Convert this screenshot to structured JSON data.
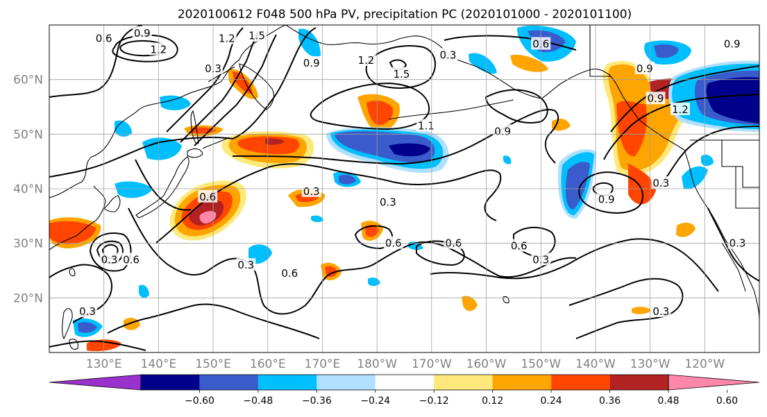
{
  "title": "2020100612 F048 500 hPa PV, precipitation PC (2020101000 - 2020101100)",
  "map": {
    "lon_range": [
      120,
      250
    ],
    "lat_range": [
      10,
      70
    ],
    "lat_ticks": [
      {
        "value": 20,
        "label": "20°N"
      },
      {
        "value": 30,
        "label": "30°N"
      },
      {
        "value": 40,
        "label": "40°N"
      },
      {
        "value": 50,
        "label": "50°N"
      },
      {
        "value": 60,
        "label": "60°N"
      }
    ],
    "lon_ticks": [
      {
        "value": 130,
        "label": "130°E"
      },
      {
        "value": 140,
        "label": "140°E"
      },
      {
        "value": 150,
        "label": "150°E"
      },
      {
        "value": 160,
        "label": "160°E"
      },
      {
        "value": 170,
        "label": "170°E"
      },
      {
        "value": 180,
        "label": "180°W"
      },
      {
        "value": 190,
        "label": "170°W"
      },
      {
        "value": 200,
        "label": "160°W"
      },
      {
        "value": 210,
        "label": "150°W"
      },
      {
        "value": 220,
        "label": "140°W"
      },
      {
        "value": 230,
        "label": "130°W"
      },
      {
        "value": 240,
        "label": "120°W"
      }
    ],
    "contour_labels": [
      {
        "text": "0.6",
        "lon": 130,
        "lat": 67.5
      },
      {
        "text": "0.9",
        "lon": 137,
        "lat": 68.5
      },
      {
        "text": "1.2",
        "lon": 140,
        "lat": 65.5
      },
      {
        "text": "1.2",
        "lon": 152.5,
        "lat": 67.5
      },
      {
        "text": "1.5",
        "lon": 158,
        "lat": 68
      },
      {
        "text": "0.3",
        "lon": 150,
        "lat": 62
      },
      {
        "text": "0.9",
        "lon": 168,
        "lat": 63
      },
      {
        "text": "1.2",
        "lon": 178,
        "lat": 63.5
      },
      {
        "text": "1.5",
        "lon": 184.5,
        "lat": 61
      },
      {
        "text": "0.3",
        "lon": 193,
        "lat": 64.5
      },
      {
        "text": "0.6",
        "lon": 210,
        "lat": 66.5
      },
      {
        "text": "0.9",
        "lon": 229,
        "lat": 62
      },
      {
        "text": "0.9",
        "lon": 245,
        "lat": 66.5
      },
      {
        "text": "0.9",
        "lon": 231,
        "lat": 56.5
      },
      {
        "text": "1.2",
        "lon": 235.5,
        "lat": 54.5
      },
      {
        "text": "1.1",
        "lon": 189,
        "lat": 51.5
      },
      {
        "text": "0.9",
        "lon": 203,
        "lat": 50.5
      },
      {
        "text": "0.6",
        "lon": 149,
        "lat": 38.5
      },
      {
        "text": "0.3",
        "lon": 168,
        "lat": 39.5
      },
      {
        "text": "0.3",
        "lon": 182,
        "lat": 37.5
      },
      {
        "text": "0.6",
        "lon": 183,
        "lat": 30
      },
      {
        "text": "0.6",
        "lon": 194,
        "lat": 30
      },
      {
        "text": "0.6",
        "lon": 206,
        "lat": 29.5
      },
      {
        "text": "0.3",
        "lon": 210,
        "lat": 27
      },
      {
        "text": "0.9",
        "lon": 222,
        "lat": 38
      },
      {
        "text": "0.3",
        "lon": 232,
        "lat": 41
      },
      {
        "text": "0.3",
        "lon": 246,
        "lat": 30
      },
      {
        "text": "0.3",
        "lon": 232,
        "lat": 17.5
      },
      {
        "text": "0.3",
        "lon": 127,
        "lat": 17.5
      },
      {
        "text": "0.3",
        "lon": 131,
        "lat": 27
      },
      {
        "text": "0.6",
        "lon": 135,
        "lat": 27
      },
      {
        "text": "0.3",
        "lon": 156,
        "lat": 26
      },
      {
        "text": "0.6",
        "lon": 164,
        "lat": 24.5
      }
    ]
  },
  "colorbar": {
    "colors": [
      "#9932cc",
      "#00008b",
      "#3a5bcc",
      "#00bfff",
      "#b0e0ff",
      "#ffffff",
      "#ffe97a",
      "#ffa500",
      "#ff4500",
      "#b22222",
      "#ff88aa"
    ],
    "tick_labels": [
      "−0.60",
      "−0.48",
      "−0.36",
      "−0.24",
      "−0.12",
      "0.12",
      "0.24",
      "0.36",
      "0.48",
      "0.60"
    ]
  }
}
